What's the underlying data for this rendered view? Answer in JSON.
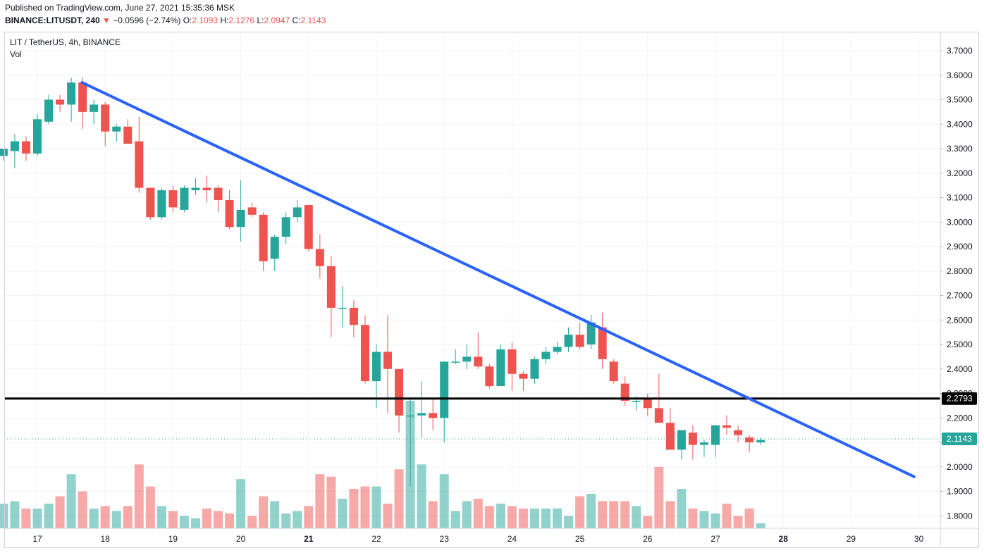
{
  "header": {
    "published": "Published on TradingView.com, June 27, 2021 15:35:36 MSK",
    "symbol_line": {
      "symbol": "BINANCE:LITUSDT, 240",
      "change_arrow": "▼",
      "change": "−0.0596 (−2.74%)",
      "o_label": "O:",
      "o": "2.1093",
      "h_label": "H:",
      "h": "2.1276",
      "l_label": "L:",
      "l": "2.0947",
      "c_label": "C:",
      "c": "2.1143"
    }
  },
  "legend": {
    "title": "LIT / TetherUS, 4h, BINANCE",
    "volume": "Vol"
  },
  "colors": {
    "up": "#26a69a",
    "down": "#ef5350",
    "trendline": "#2962ff",
    "level_line": "#000000"
  },
  "chart_data": {
    "type": "candlestick",
    "interval": "4h",
    "ylim": [
      1.76,
      3.77
    ],
    "y_ticks": [
      "1.8000",
      "1.9000",
      "2.0000",
      "2.1000",
      "2.2000",
      "2.3000",
      "2.4000",
      "2.5000",
      "2.6000",
      "2.7000",
      "2.8000",
      "2.9000",
      "3.0000",
      "3.1000",
      "3.2000",
      "3.3000",
      "3.4000",
      "3.5000",
      "3.6000",
      "3.7000"
    ],
    "x_ticks": [
      {
        "day": 17,
        "label": "17",
        "bold": false
      },
      {
        "day": 18,
        "label": "18",
        "bold": false
      },
      {
        "day": 19,
        "label": "19",
        "bold": false
      },
      {
        "day": 20,
        "label": "20",
        "bold": false
      },
      {
        "day": 21,
        "label": "21",
        "bold": true
      },
      {
        "day": 22,
        "label": "22",
        "bold": false
      },
      {
        "day": 23,
        "label": "23",
        "bold": false
      },
      {
        "day": 24,
        "label": "24",
        "bold": false
      },
      {
        "day": 25,
        "label": "25",
        "bold": false
      },
      {
        "day": 26,
        "label": "26",
        "bold": false
      },
      {
        "day": 27,
        "label": "27",
        "bold": false
      },
      {
        "day": 28,
        "label": "28",
        "bold": true
      },
      {
        "day": 29,
        "label": "29",
        "bold": false
      },
      {
        "day": 30,
        "label": "30",
        "bold": false
      }
    ],
    "first_candle_day": 16.5,
    "candles_per_day": 6,
    "candles": [
      [
        3.27,
        3.3,
        3.25,
        3.3
      ],
      [
        3.29,
        3.36,
        3.22,
        3.33
      ],
      [
        3.33,
        3.35,
        3.25,
        3.28
      ],
      [
        3.28,
        3.44,
        3.27,
        3.42
      ],
      [
        3.41,
        3.52,
        3.4,
        3.5
      ],
      [
        3.5,
        3.52,
        3.45,
        3.48
      ],
      [
        3.48,
        3.59,
        3.41,
        3.57
      ],
      [
        3.57,
        3.59,
        3.38,
        3.45
      ],
      [
        3.45,
        3.5,
        3.4,
        3.48
      ],
      [
        3.48,
        3.49,
        3.31,
        3.37
      ],
      [
        3.37,
        3.4,
        3.33,
        3.39
      ],
      [
        3.39,
        3.42,
        3.32,
        3.32
      ],
      [
        3.33,
        3.43,
        3.12,
        3.14
      ],
      [
        3.14,
        3.14,
        3.01,
        3.02
      ],
      [
        3.02,
        3.14,
        3.01,
        3.13
      ],
      [
        3.13,
        3.15,
        3.04,
        3.06
      ],
      [
        3.05,
        3.15,
        3.04,
        3.14
      ],
      [
        3.13,
        3.18,
        3.11,
        3.14
      ],
      [
        3.14,
        3.19,
        3.08,
        3.13
      ],
      [
        3.14,
        3.15,
        3.04,
        3.09
      ],
      [
        3.09,
        3.13,
        2.97,
        2.98
      ],
      [
        2.98,
        3.17,
        2.92,
        3.05
      ],
      [
        3.06,
        3.08,
        3.02,
        3.03
      ],
      [
        3.03,
        3.04,
        2.8,
        2.84
      ],
      [
        2.85,
        2.95,
        2.8,
        2.94
      ],
      [
        2.94,
        3.04,
        2.91,
        3.02
      ],
      [
        3.02,
        3.09,
        3.0,
        3.06
      ],
      [
        3.07,
        3.07,
        2.88,
        2.89
      ],
      [
        2.89,
        2.95,
        2.77,
        2.82
      ],
      [
        2.82,
        2.86,
        2.53,
        2.65
      ],
      [
        2.65,
        2.74,
        2.57,
        2.65
      ],
      [
        2.65,
        2.68,
        2.53,
        2.58
      ],
      [
        2.58,
        2.62,
        2.34,
        2.35
      ],
      [
        2.35,
        2.5,
        2.24,
        2.47
      ],
      [
        2.47,
        2.62,
        2.22,
        2.4
      ],
      [
        2.4,
        2.4,
        2.14,
        2.21
      ],
      [
        2.21,
        2.28,
        1.92,
        2.21
      ],
      [
        2.21,
        2.35,
        2.12,
        2.22
      ],
      [
        2.22,
        2.28,
        2.15,
        2.2
      ],
      [
        2.2,
        2.43,
        2.1,
        2.43
      ],
      [
        2.43,
        2.48,
        2.42,
        2.43
      ],
      [
        2.43,
        2.5,
        2.4,
        2.45
      ],
      [
        2.45,
        2.55,
        2.4,
        2.41
      ],
      [
        2.41,
        2.42,
        2.32,
        2.33
      ],
      [
        2.33,
        2.5,
        2.33,
        2.48
      ],
      [
        2.48,
        2.51,
        2.31,
        2.38
      ],
      [
        2.38,
        2.39,
        2.31,
        2.36
      ],
      [
        2.36,
        2.45,
        2.34,
        2.44
      ],
      [
        2.44,
        2.49,
        2.42,
        2.47
      ],
      [
        2.47,
        2.51,
        2.46,
        2.49
      ],
      [
        2.49,
        2.57,
        2.47,
        2.54
      ],
      [
        2.54,
        2.59,
        2.48,
        2.49
      ],
      [
        2.5,
        2.62,
        2.48,
        2.59
      ],
      [
        2.57,
        2.63,
        2.4,
        2.44
      ],
      [
        2.43,
        2.44,
        2.34,
        2.35
      ],
      [
        2.34,
        2.37,
        2.25,
        2.27
      ],
      [
        2.27,
        2.29,
        2.23,
        2.27
      ],
      [
        2.28,
        2.3,
        2.21,
        2.24
      ],
      [
        2.24,
        2.38,
        2.2,
        2.18
      ],
      [
        2.18,
        2.24,
        2.07,
        2.07
      ],
      [
        2.07,
        2.15,
        2.03,
        2.15
      ],
      [
        2.14,
        2.17,
        2.03,
        2.09
      ],
      [
        2.09,
        2.11,
        2.04,
        2.1
      ],
      [
        2.09,
        2.17,
        2.04,
        2.17
      ],
      [
        2.17,
        2.21,
        2.13,
        2.16
      ],
      [
        2.15,
        2.17,
        2.1,
        2.13
      ],
      [
        2.12,
        2.13,
        2.06,
        2.1
      ],
      [
        2.1,
        2.12,
        2.09,
        2.11
      ]
    ],
    "volumes": [
      1.85,
      1.86,
      1.83,
      1.83,
      1.85,
      1.88,
      1.97,
      1.9,
      1.83,
      1.84,
      1.82,
      1.84,
      2.01,
      1.92,
      1.84,
      1.82,
      1.8,
      1.79,
      1.83,
      1.82,
      1.81,
      1.95,
      1.8,
      1.88,
      1.86,
      1.81,
      1.82,
      1.84,
      1.97,
      1.96,
      1.87,
      1.91,
      1.92,
      1.92,
      1.85,
      1.99,
      2.27,
      2.01,
      1.86,
      1.97,
      1.82,
      1.86,
      1.87,
      1.84,
      1.85,
      1.84,
      1.83,
      1.83,
      1.83,
      1.83,
      1.8,
      1.88,
      1.89,
      1.86,
      1.86,
      1.86,
      1.84,
      1.8,
      2.0,
      1.86,
      1.91,
      1.83,
      1.82,
      1.81,
      1.85,
      1.8,
      1.83,
      1.77
    ],
    "horizontal_level": {
      "value": 2.2793,
      "label": "2.2793"
    },
    "last_price": {
      "value": 2.1143,
      "label": "2.1143"
    },
    "trendline": {
      "start": {
        "day": 17.66,
        "price": 3.57
      },
      "end": {
        "day": 29.93,
        "price": 1.96
      }
    }
  }
}
